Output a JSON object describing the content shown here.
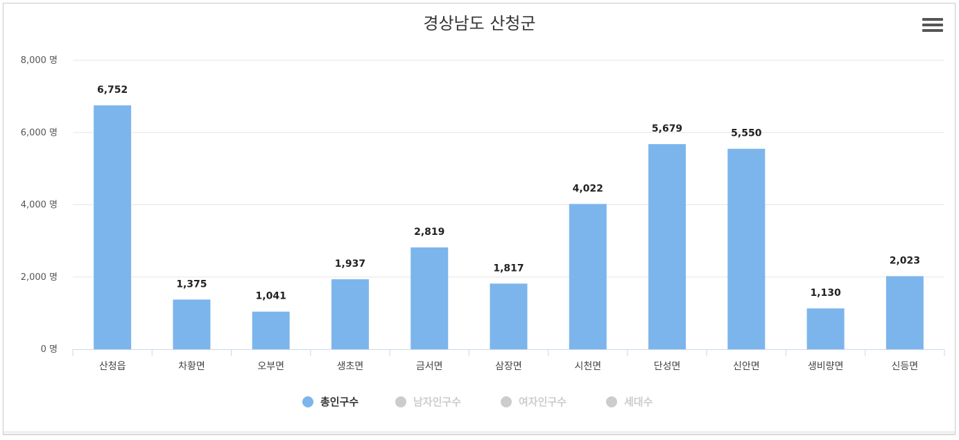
{
  "chart_data": {
    "type": "bar",
    "title": "경상남도 산청군",
    "categories": [
      "산청읍",
      "차황면",
      "오부면",
      "생초면",
      "금서면",
      "삼장면",
      "시천면",
      "단성면",
      "신안면",
      "생비량면",
      "신등면"
    ],
    "series": [
      {
        "name": "총인구수",
        "values": [
          6752,
          1375,
          1041,
          1937,
          2819,
          1817,
          4022,
          5679,
          5550,
          1130,
          2023
        ]
      }
    ],
    "data_labels": [
      "6,752",
      "1,375",
      "1,041",
      "1,937",
      "2,819",
      "1,817",
      "4,022",
      "5,679",
      "5,550",
      "1,130",
      "2,023"
    ],
    "ylim": [
      0,
      8000
    ],
    "yticks": [
      0,
      2000,
      4000,
      6000,
      8000
    ],
    "ytick_labels": [
      "0 명",
      "2,000 명",
      "4,000 명",
      "6,000 명",
      "8,000 명"
    ],
    "grid": true,
    "legend_position": "bottom-center",
    "bar_color": "#7cb5ec"
  },
  "legend": [
    {
      "label": "총인구수",
      "active": true,
      "color": "#7cb5ec"
    },
    {
      "label": "남자인구수",
      "active": false,
      "color": "#cccccc"
    },
    {
      "label": "여자인구수",
      "active": false,
      "color": "#cccccc"
    },
    {
      "label": "세대수",
      "active": false,
      "color": "#cccccc"
    }
  ],
  "menu_icon": "hamburger-menu-icon"
}
